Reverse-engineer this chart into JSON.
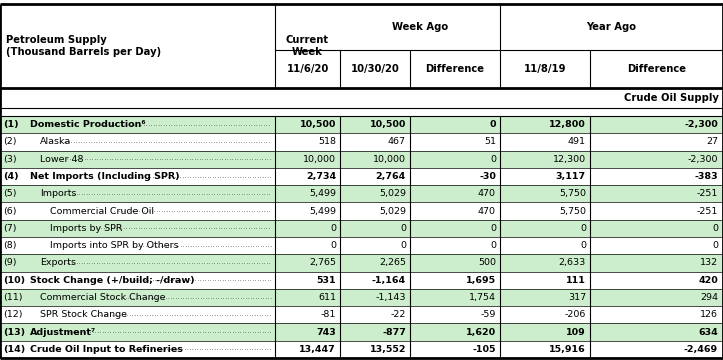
{
  "title_line1": "Petroleum Supply",
  "title_line2": "(Thousand Barrels per Day)",
  "col_headers_top": [
    "",
    "Current\nWeek",
    "Week Ago",
    "",
    "Year Ago",
    ""
  ],
  "col_headers_bot": [
    "",
    "11/6/20",
    "10/30/20",
    "Difference",
    "11/8/19",
    "Difference"
  ],
  "section_header": "Crude Oil Supply",
  "rows": [
    {
      "num": "(1)",
      "label": "Domestic Production⁶",
      "bold": true,
      "indent": 0,
      "curr": "10,500",
      "wk_ago": "10,500",
      "wk_diff": "0",
      "yr_ago": "12,800",
      "yr_diff": "-2,300",
      "shaded": true
    },
    {
      "num": "(2)",
      "label": "Alaska",
      "bold": false,
      "indent": 1,
      "curr": "518",
      "wk_ago": "467",
      "wk_diff": "51",
      "yr_ago": "491",
      "yr_diff": "27",
      "shaded": false
    },
    {
      "num": "(3)",
      "label": "Lower 48",
      "bold": false,
      "indent": 1,
      "curr": "10,000",
      "wk_ago": "10,000",
      "wk_diff": "0",
      "yr_ago": "12,300",
      "yr_diff": "-2,300",
      "shaded": true
    },
    {
      "num": "(4)",
      "label": "Net Imports (Including SPR)",
      "bold": true,
      "indent": 0,
      "curr": "2,734",
      "wk_ago": "2,764",
      "wk_diff": "-30",
      "yr_ago": "3,117",
      "yr_diff": "-383",
      "shaded": false
    },
    {
      "num": "(5)",
      "label": "Imports",
      "bold": false,
      "indent": 1,
      "curr": "5,499",
      "wk_ago": "5,029",
      "wk_diff": "470",
      "yr_ago": "5,750",
      "yr_diff": "-251",
      "shaded": true
    },
    {
      "num": "(6)",
      "label": "Commercial Crude Oil",
      "bold": false,
      "indent": 2,
      "curr": "5,499",
      "wk_ago": "5,029",
      "wk_diff": "470",
      "yr_ago": "5,750",
      "yr_diff": "-251",
      "shaded": false
    },
    {
      "num": "(7)",
      "label": "Imports by SPR",
      "bold": false,
      "indent": 2,
      "curr": "0",
      "wk_ago": "0",
      "wk_diff": "0",
      "yr_ago": "0",
      "yr_diff": "0",
      "shaded": true
    },
    {
      "num": "(8)",
      "label": "Imports into SPR by Others",
      "bold": false,
      "indent": 2,
      "curr": "0",
      "wk_ago": "0",
      "wk_diff": "0",
      "yr_ago": "0",
      "yr_diff": "0",
      "shaded": false
    },
    {
      "num": "(9)",
      "label": "Exports",
      "bold": false,
      "indent": 1,
      "curr": "2,765",
      "wk_ago": "2,265",
      "wk_diff": "500",
      "yr_ago": "2,633",
      "yr_diff": "132",
      "shaded": true
    },
    {
      "num": "(10)",
      "label": "Stock Change (+/build; -/draw)",
      "bold": true,
      "indent": 0,
      "curr": "531",
      "wk_ago": "-1,164",
      "wk_diff": "1,695",
      "yr_ago": "111",
      "yr_diff": "420",
      "shaded": false
    },
    {
      "num": "(11)",
      "label": "Commercial Stock Change",
      "bold": false,
      "indent": 1,
      "curr": "611",
      "wk_ago": "-1,143",
      "wk_diff": "1,754",
      "yr_ago": "317",
      "yr_diff": "294",
      "shaded": true
    },
    {
      "num": "(12)",
      "label": "SPR Stock Change",
      "bold": false,
      "indent": 1,
      "curr": "-81",
      "wk_ago": "-22",
      "wk_diff": "-59",
      "yr_ago": "-206",
      "yr_diff": "126",
      "shaded": false
    },
    {
      "num": "(13)",
      "label": "Adjustment⁷",
      "bold": true,
      "indent": 0,
      "curr": "743",
      "wk_ago": "-877",
      "wk_diff": "1,620",
      "yr_ago": "109",
      "yr_diff": "634",
      "shaded": true
    },
    {
      "num": "(14)",
      "label": "Crude Oil Input to Refineries",
      "bold": true,
      "indent": 0,
      "curr": "13,447",
      "wk_ago": "13,552",
      "wk_diff": "-105",
      "yr_ago": "15,916",
      "yr_diff": "-2,469",
      "shaded": false
    }
  ],
  "colors": {
    "shaded_row": "#cceecc",
    "white_row": "#ffffff",
    "border": "#000000"
  },
  "figsize": [
    7.23,
    3.6
  ],
  "dpi": 100
}
